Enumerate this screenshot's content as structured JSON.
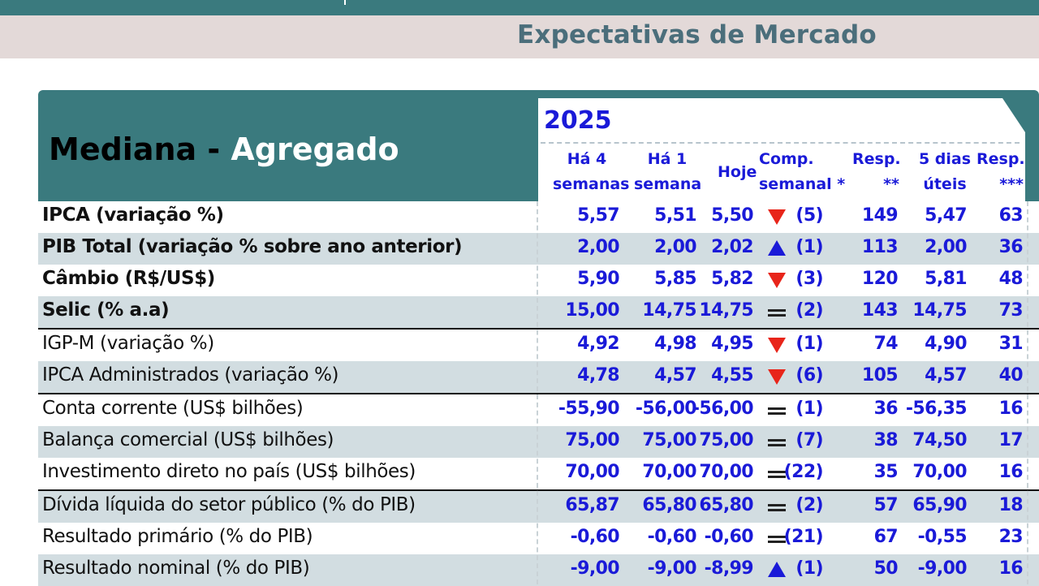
{
  "page": {
    "title": "Expectativas de Mercado"
  },
  "panel": {
    "title_part1": "Mediana - ",
    "title_part2": "Agregado",
    "year": "2025"
  },
  "columns": {
    "c1": [
      "Há 4",
      "semanas"
    ],
    "c2": [
      "Há 1",
      "semana"
    ],
    "c3": [
      "Hoje"
    ],
    "c4": [
      "Comp.",
      "semanal *"
    ],
    "c5": [
      "Resp.",
      "**"
    ],
    "c6": [
      "5 dias",
      "úteis"
    ],
    "c7": [
      "Resp.",
      "***"
    ]
  },
  "colors": {
    "header_teal": "#3a7a7e",
    "value_blue": "#1a1ad8",
    "down_red": "#e8251a",
    "row_shade": "#d2dde1",
    "title_band": "#e3d9d8"
  },
  "rows": [
    {
      "label": "IPCA (variação %)",
      "bold": true,
      "ha4": "5,57",
      "ha1": "5,51",
      "hoje": "5,50",
      "trend": "down",
      "comp": "(5)",
      "resp": "149",
      "dias5": "5,47",
      "resp5": "63"
    },
    {
      "label": "PIB Total (variação % sobre ano anterior)",
      "bold": true,
      "ha4": "2,00",
      "ha1": "2,00",
      "hoje": "2,02",
      "trend": "up",
      "comp": "(1)",
      "resp": "113",
      "dias5": "2,00",
      "resp5": "36"
    },
    {
      "label": "Câmbio (R$/US$)",
      "bold": true,
      "ha4": "5,90",
      "ha1": "5,85",
      "hoje": "5,82",
      "trend": "down",
      "comp": "(3)",
      "resp": "120",
      "dias5": "5,81",
      "resp5": "48"
    },
    {
      "label": "Selic (% a.a)",
      "bold": true,
      "ha4": "15,00",
      "ha1": "14,75",
      "hoje": "14,75",
      "trend": "equal",
      "comp": "(2)",
      "resp": "143",
      "dias5": "14,75",
      "resp5": "73"
    },
    {
      "label": "IGP-M (variação %)",
      "bold": false,
      "ha4": "4,92",
      "ha1": "4,98",
      "hoje": "4,95",
      "trend": "down",
      "comp": "(1)",
      "resp": "74",
      "dias5": "4,90",
      "resp5": "31"
    },
    {
      "label": "IPCA Administrados (variação %)",
      "bold": false,
      "ha4": "4,78",
      "ha1": "4,57",
      "hoje": "4,55",
      "trend": "down",
      "comp": "(6)",
      "resp": "105",
      "dias5": "4,57",
      "resp5": "40"
    },
    {
      "label": "Conta corrente (US$ bilhões)",
      "bold": false,
      "ha4": "-55,90",
      "ha1": "-56,00",
      "hoje": "-56,00",
      "trend": "equal",
      "comp": "(1)",
      "resp": "36",
      "dias5": "-56,35",
      "resp5": "16"
    },
    {
      "label": "Balança comercial (US$ bilhões)",
      "bold": false,
      "ha4": "75,00",
      "ha1": "75,00",
      "hoje": "75,00",
      "trend": "equal",
      "comp": "(7)",
      "resp": "38",
      "dias5": "74,50",
      "resp5": "17"
    },
    {
      "label": "Investimento direto no país (US$ bilhões)",
      "bold": false,
      "ha4": "70,00",
      "ha1": "70,00",
      "hoje": "70,00",
      "trend": "equal",
      "comp": "(22)",
      "resp": "35",
      "dias5": "70,00",
      "resp5": "16"
    },
    {
      "label": "Dívida líquida do setor público (% do PIB)",
      "bold": false,
      "ha4": "65,87",
      "ha1": "65,80",
      "hoje": "65,80",
      "trend": "equal",
      "comp": "(2)",
      "resp": "57",
      "dias5": "65,90",
      "resp5": "18"
    },
    {
      "label": "Resultado primário (% do PIB)",
      "bold": false,
      "ha4": "-0,60",
      "ha1": "-0,60",
      "hoje": "-0,60",
      "trend": "equal",
      "comp": "(21)",
      "resp": "67",
      "dias5": "-0,55",
      "resp5": "23"
    },
    {
      "label": "Resultado nominal (% do PIB)",
      "bold": false,
      "ha4": "-9,00",
      "ha1": "-9,00",
      "hoje": "-8,99",
      "trend": "up",
      "comp": "(1)",
      "resp": "50",
      "dias5": "-9,00",
      "resp5": "16"
    }
  ]
}
